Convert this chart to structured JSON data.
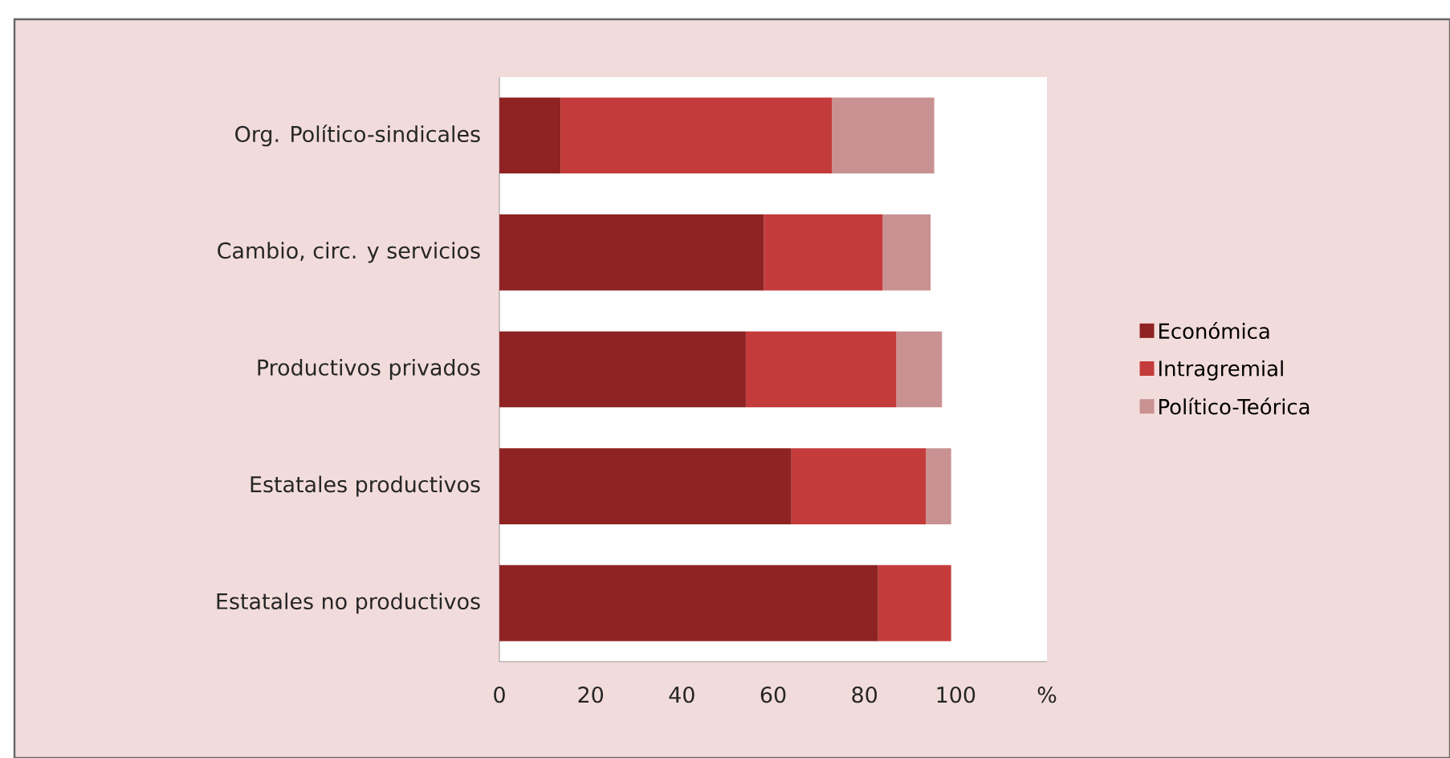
{
  "chart_data": {
    "type": "bar",
    "orientation": "horizontal",
    "stacked": true,
    "categories": [
      "Org. Político-sindicales",
      "Cambio, circ. y servicios",
      "Productivos privados",
      "Estatales productivos",
      "Estatales no productivos"
    ],
    "series": [
      {
        "name": "Económica",
        "color": "#8f2323",
        "values": [
          13.4,
          58,
          54,
          64,
          83
        ]
      },
      {
        "name": "Intragremial",
        "color": "#c43b3b",
        "values": [
          59.5,
          26,
          33,
          29.5,
          16
        ]
      },
      {
        "name": "Político-Teórica",
        "color": "#c99292",
        "values": [
          22.4,
          10.5,
          10,
          5.5,
          null
        ]
      }
    ],
    "xlim": [
      0,
      120
    ],
    "xticks": [
      0,
      20,
      40,
      60,
      80,
      100,
      {
        "value": 120,
        "label": "%"
      }
    ],
    "grid": false,
    "legend": "right"
  }
}
